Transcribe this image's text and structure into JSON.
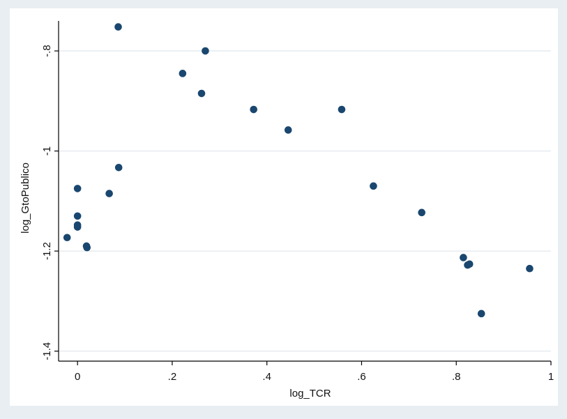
{
  "chart_data": {
    "type": "scatter",
    "title": "",
    "xlabel": "log_TCR",
    "ylabel": "log_GtoPublico",
    "xlim": [
      -0.04,
      1.0
    ],
    "ylim": [
      -1.42,
      -0.74
    ],
    "x_ticks": [
      0,
      0.2,
      0.4,
      0.6,
      0.8,
      1
    ],
    "x_tick_labels": [
      "0",
      ".2",
      ".4",
      ".6",
      ".8",
      "1"
    ],
    "y_ticks": [
      -0.8,
      -1,
      -1.2,
      -1.4
    ],
    "y_tick_labels": [
      "-.8",
      "-1",
      "-1.2",
      "-1.4"
    ],
    "grid": "horizontal",
    "legend": "none",
    "colors": {
      "background": "#e8eef2",
      "plot_background": "#ffffff",
      "marker": "#1a476f",
      "grid": "#e6ebef",
      "axis": "#000000"
    },
    "series": [
      {
        "points": [
          {
            "x": 0.086,
            "y": -0.752
          },
          {
            "x": 0.27,
            "y": -0.8
          },
          {
            "x": 0.222,
            "y": -0.845
          },
          {
            "x": 0.262,
            "y": -0.885
          },
          {
            "x": 0.372,
            "y": -0.917
          },
          {
            "x": 0.558,
            "y": -0.917
          },
          {
            "x": 0.445,
            "y": -0.958
          },
          {
            "x": 0.087,
            "y": -1.033
          },
          {
            "x": 0.0,
            "y": -1.075
          },
          {
            "x": 0.625,
            "y": -1.07
          },
          {
            "x": 0.067,
            "y": -1.085
          },
          {
            "x": 0.0,
            "y": -1.13
          },
          {
            "x": 0.0,
            "y": -1.148
          },
          {
            "x": 0.0,
            "y": -1.152
          },
          {
            "x": -0.022,
            "y": -1.173
          },
          {
            "x": 0.019,
            "y": -1.19
          },
          {
            "x": 0.02,
            "y": -1.193
          },
          {
            "x": 0.727,
            "y": -1.123
          },
          {
            "x": 0.815,
            "y": -1.213
          },
          {
            "x": 0.824,
            "y": -1.228
          },
          {
            "x": 0.828,
            "y": -1.226
          },
          {
            "x": 0.955,
            "y": -1.235
          },
          {
            "x": 0.853,
            "y": -1.325
          }
        ]
      }
    ]
  }
}
